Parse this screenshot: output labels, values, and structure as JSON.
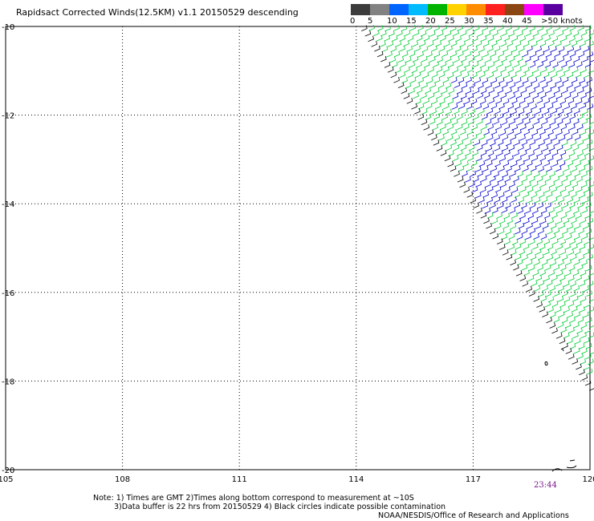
{
  "title": "Rapidsact Corrected Winds(12.5KM) v1.1 20150529 descending",
  "legend": {
    "labels": [
      "0",
      "5",
      "10",
      "15",
      "20",
      "25",
      "30",
      "35",
      "40",
      "45",
      ">50 knots"
    ],
    "colors": [
      "#3c3c3c",
      "#828282",
      "#0064ff",
      "#00bbff",
      "#00b400",
      "#ffd200",
      "#ff8c00",
      "#ff2020",
      "#8b4513",
      "#ff00ff",
      "#5a00a0"
    ]
  },
  "map": {
    "lat_range": [
      -20,
      -10
    ],
    "lon_range": [
      105,
      120
    ],
    "lat_ticks": [
      "-10",
      "-12",
      "-14",
      "-16",
      "-18",
      "-20"
    ],
    "lon_ticks": [
      "105",
      "108",
      "111",
      "114",
      "117",
      "120"
    ],
    "wind_colors": {
      "fast": "#0000cc",
      "moderate": "#00cc33",
      "edge": "#000000"
    },
    "time_label": "23:44"
  },
  "notes": {
    "line1": "Note: 1) Times are GMT 2)Times along bottom correspond to measurement at ~10S",
    "line2": "3)Data buffer is 22 hrs from 20150529 4) Black circles indicate possible contamination"
  },
  "credit": "NOAA/NESDIS/Office of Research and Applications"
}
